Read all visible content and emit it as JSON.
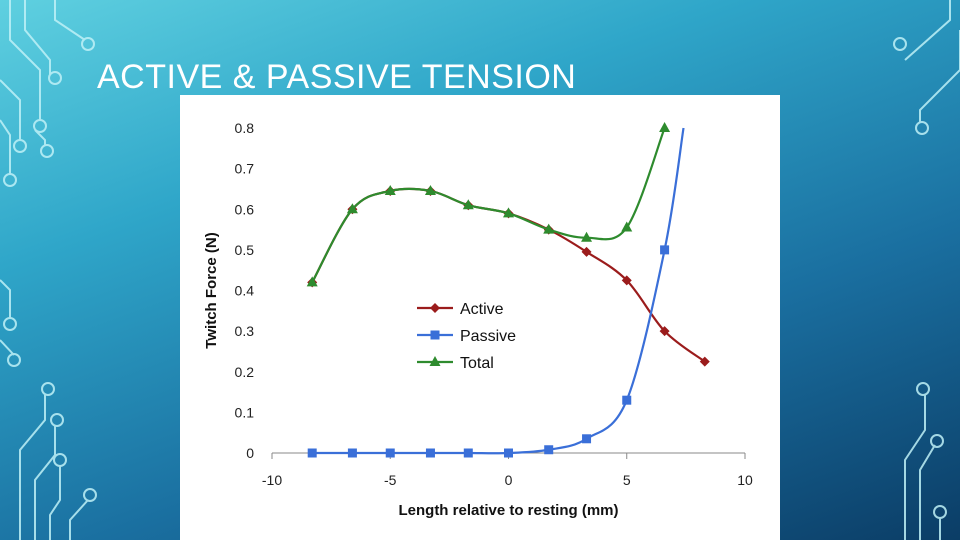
{
  "slide": {
    "title": "ACTIVE & PASSIVE TENSION"
  },
  "colors": {
    "active": "#9b1c1c",
    "passive": "#3a6fd8",
    "total": "#2e8b2e"
  },
  "chart_data": {
    "type": "line",
    "xlabel": "Length relative to resting (mm)",
    "ylabel": "Twitch Force (N)",
    "xlim": [
      -10,
      10
    ],
    "ylim": [
      0,
      0.8
    ],
    "xticks": [
      -10,
      -5,
      0,
      5,
      10
    ],
    "yticks": [
      0,
      0.1,
      0.2,
      0.3,
      0.4,
      0.5,
      0.6,
      0.7,
      0.8
    ],
    "legend": "center",
    "series": [
      {
        "name": "Active",
        "marker": "diamond",
        "x": [
          -8.3,
          -6.6,
          -5.0,
          -3.3,
          -1.7,
          0,
          1.7,
          3.3,
          5.0,
          6.6,
          8.3
        ],
        "y": [
          0.42,
          0.6,
          0.645,
          0.645,
          0.61,
          0.59,
          0.55,
          0.495,
          0.425,
          0.3,
          0.225
        ]
      },
      {
        "name": "Passive",
        "marker": "square",
        "x": [
          -8.3,
          -6.6,
          -5.0,
          -3.3,
          -1.7,
          0,
          1.7,
          3.3,
          5.0,
          6.6
        ],
        "y": [
          0,
          0,
          0,
          0,
          0,
          0,
          0.008,
          0.035,
          0.13,
          0.5
        ]
      },
      {
        "name": "Total",
        "marker": "triangle",
        "x": [
          -8.3,
          -6.6,
          -5.0,
          -3.3,
          -1.7,
          0,
          1.7,
          3.3,
          5.0,
          6.6
        ],
        "y": [
          0.42,
          0.6,
          0.645,
          0.645,
          0.61,
          0.59,
          0.55,
          0.53,
          0.555,
          0.8
        ]
      }
    ]
  }
}
